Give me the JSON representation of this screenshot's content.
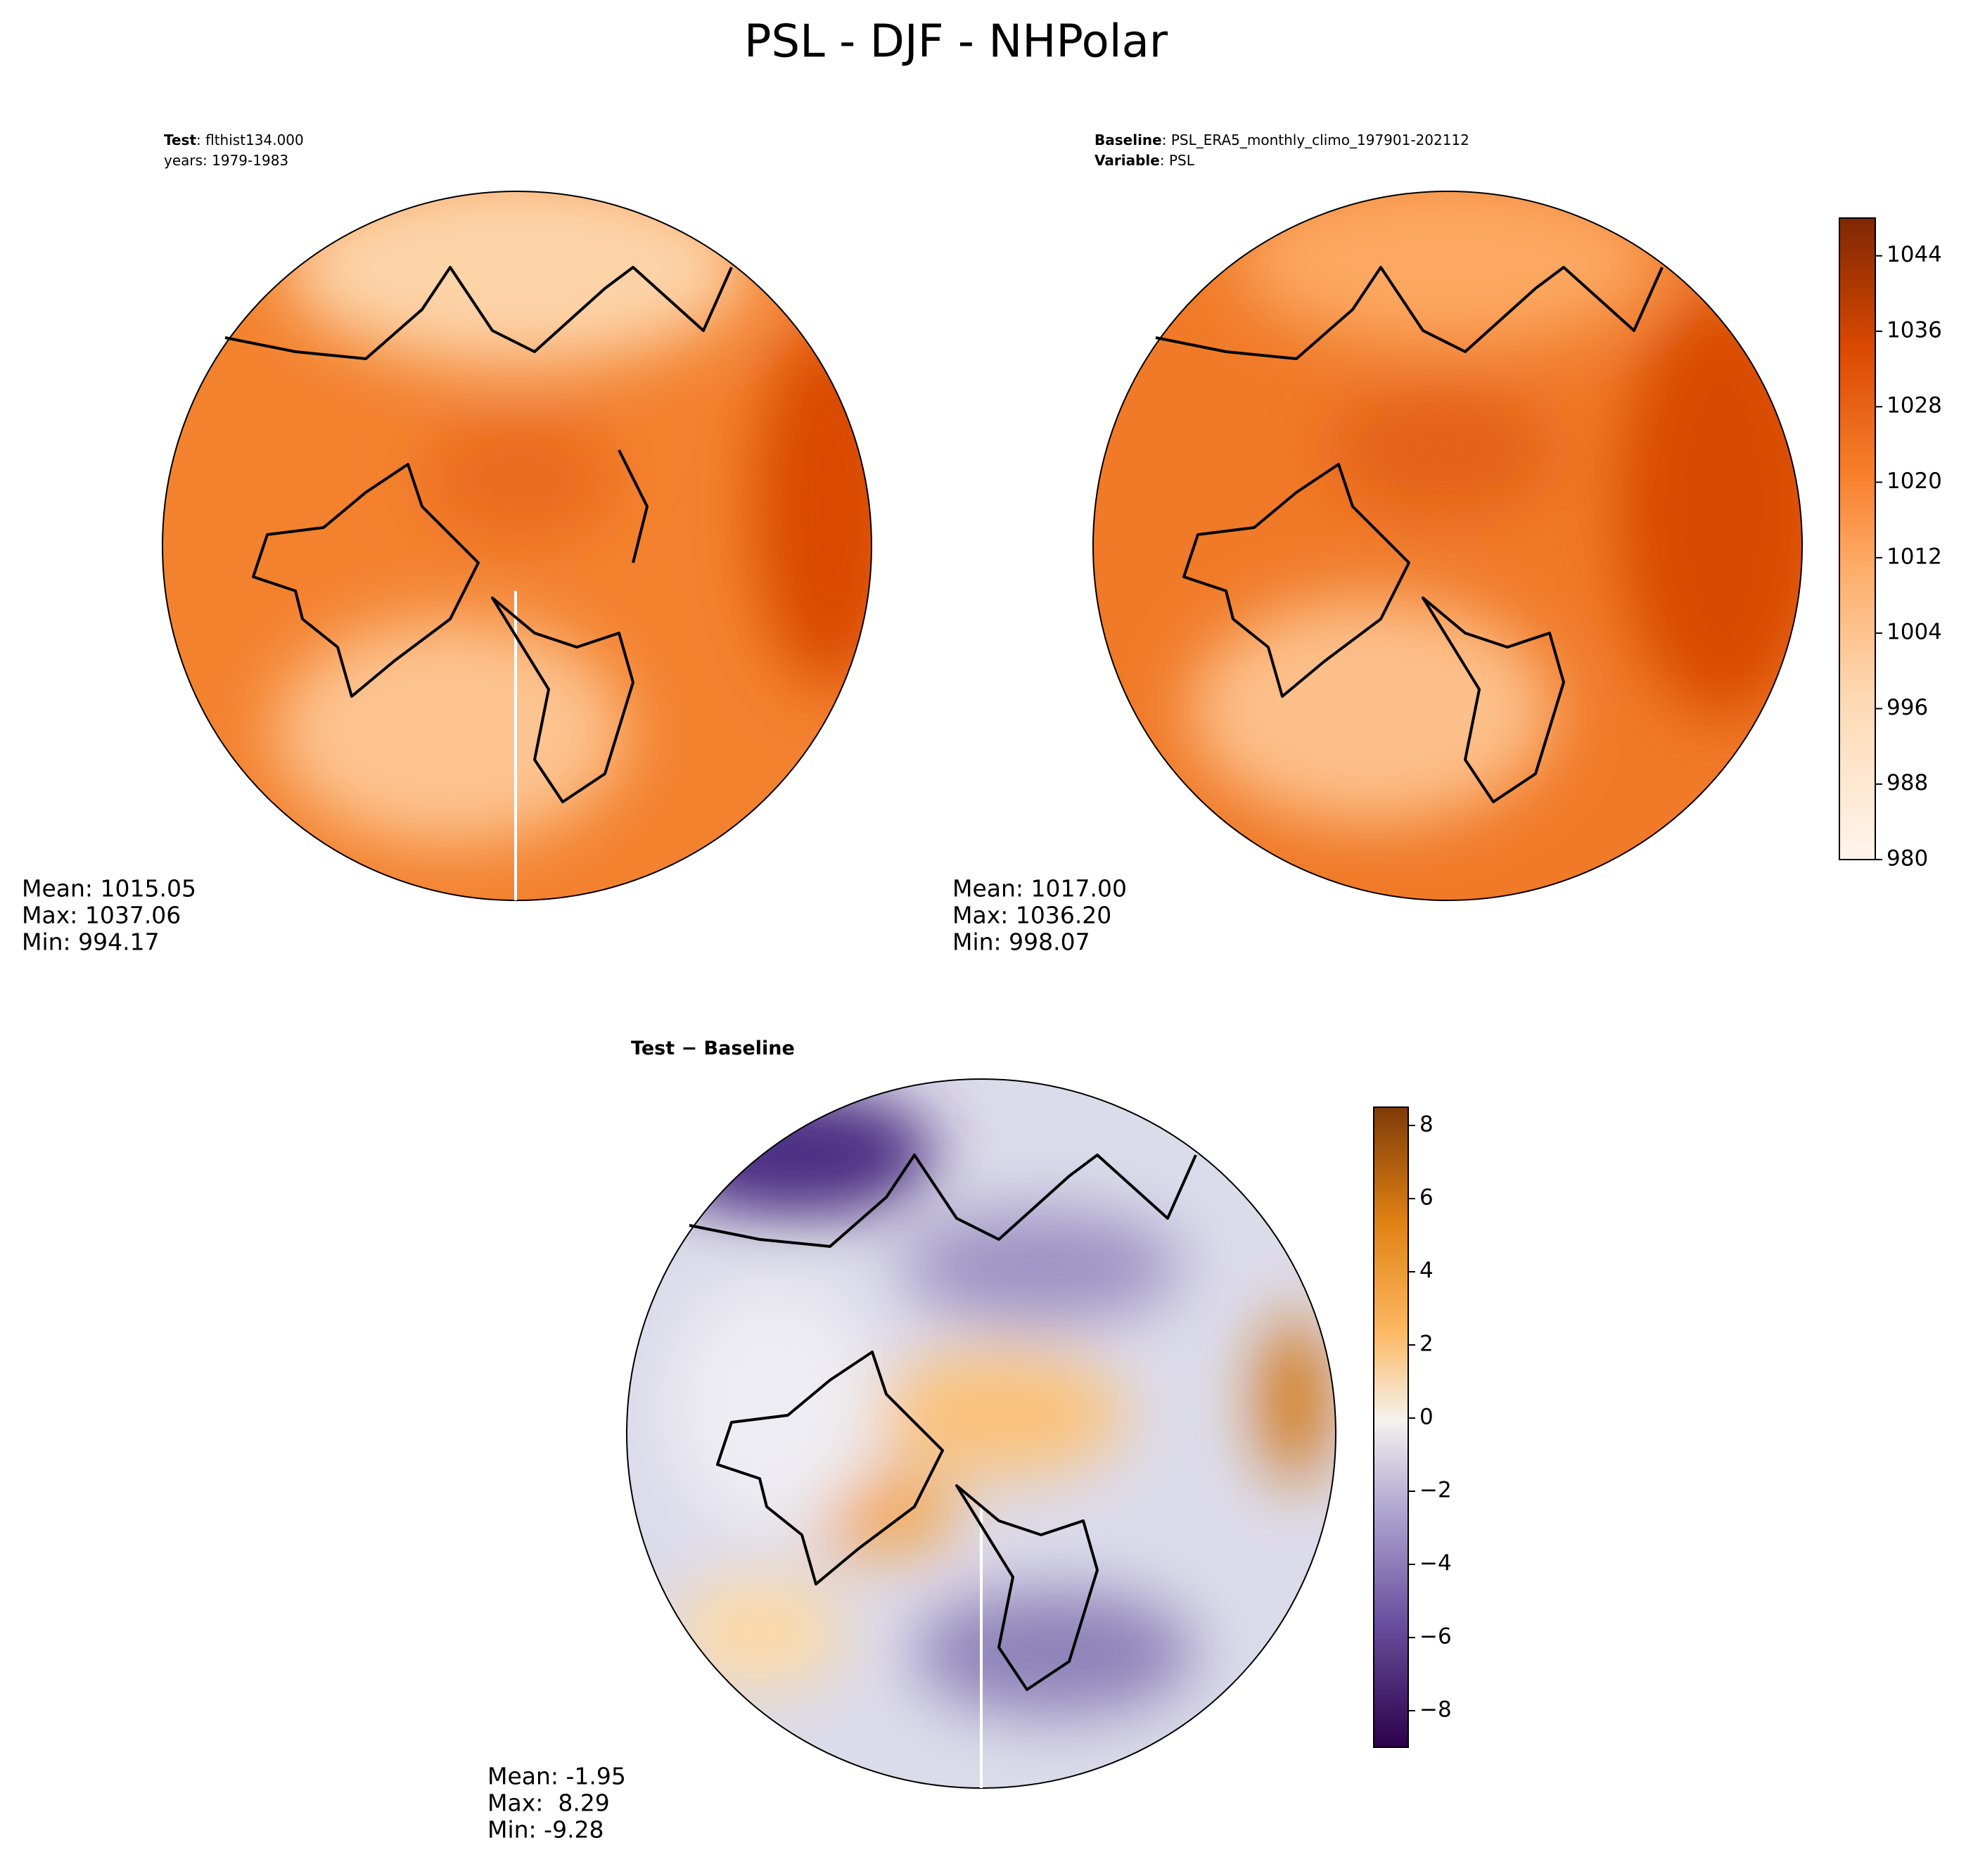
{
  "title": "PSL - DJF - NHPolar",
  "panels": [
    {
      "header": [
        {
          "bold": "Test",
          "text": ": flthist134.000"
        },
        {
          "text": "years: 1979-1983"
        }
      ],
      "stats": [
        "Mean: 1015.05",
        "Max: 1037.06",
        "Min: 994.17"
      ]
    },
    {
      "header": [
        {
          "bold": "Baseline",
          "text": ": PSL_ERA5_monthly_climo_197901-202112"
        },
        {
          "bold": "Variable",
          "text": ": PSL"
        }
      ],
      "stats": [
        "Mean: 1017.00",
        "Max: 1036.20",
        "Min: 998.07"
      ]
    },
    {
      "header": [
        {
          "bold": "Test − Baseline"
        }
      ],
      "stats": [
        "Mean: -1.95",
        "Max:  8.29",
        "Min: -9.28"
      ]
    }
  ],
  "colorbars": [
    {
      "ylim": [
        980,
        1048
      ],
      "yticks": [
        980,
        988,
        996,
        1004,
        1012,
        1020,
        1028,
        1036,
        1044
      ]
    },
    {
      "ylim": [
        -9,
        8.5
      ],
      "yticks": [
        {
          "value": -8,
          "label": "−8"
        },
        {
          "value": -6,
          "label": "−6"
        },
        {
          "value": -4,
          "label": "−4"
        },
        {
          "value": -2,
          "label": "−2"
        },
        0,
        2,
        4,
        6,
        8
      ]
    }
  ]
}
